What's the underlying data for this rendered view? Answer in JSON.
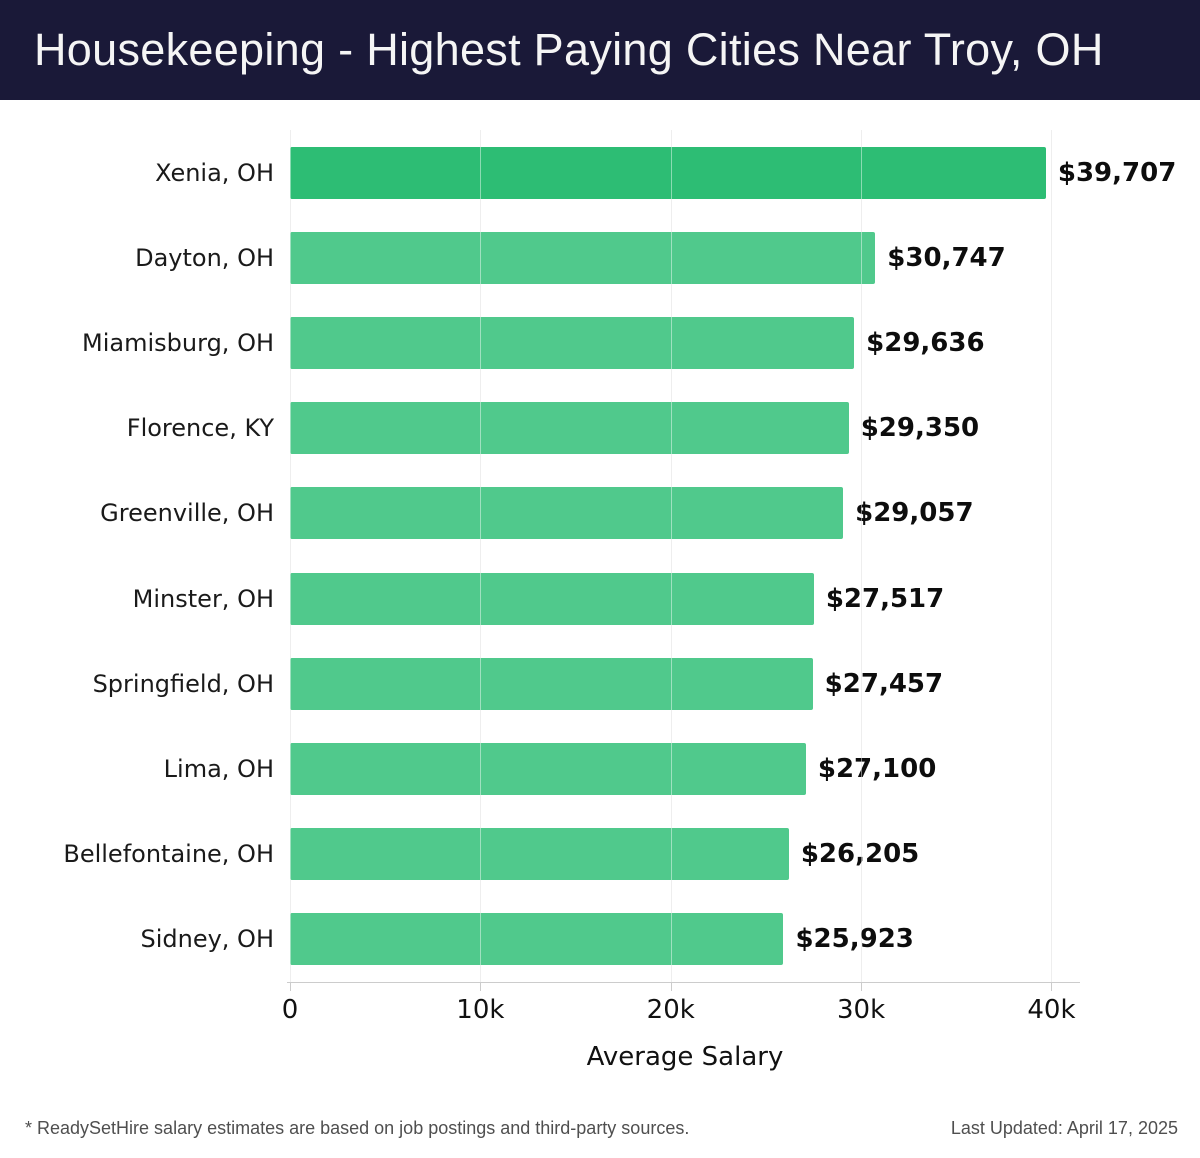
{
  "header": {
    "title": "Housekeeping - Highest Paying Cities Near Troy, OH"
  },
  "chart_data": {
    "type": "bar",
    "orientation": "horizontal",
    "title": "Housekeeping - Highest Paying Cities Near Troy, OH",
    "categories": [
      "Xenia, OH",
      "Dayton, OH",
      "Miamisburg, OH",
      "Florence, KY",
      "Greenville, OH",
      "Minster, OH",
      "Springfield, OH",
      "Lima, OH",
      "Bellefontaine, OH",
      "Sidney, OH"
    ],
    "values": [
      39707,
      30747,
      29636,
      29350,
      29057,
      27517,
      27457,
      27100,
      26205,
      25923
    ],
    "value_labels": [
      "$39,707",
      "$30,747",
      "$29,636",
      "$29,350",
      "$29,057",
      "$27,517",
      "$27,457",
      "$27,100",
      "$26,205",
      "$25,923"
    ],
    "xlabel": "Average Salary",
    "ylabel": "",
    "xlim": [
      0,
      41500
    ],
    "tick_values": [
      0,
      10000,
      20000,
      30000,
      40000
    ],
    "tick_labels": [
      "0",
      "10k",
      "20k",
      "30k",
      "40k"
    ],
    "grid": true,
    "legend": false,
    "highlight_index": 0,
    "colors": {
      "bar": "#50c98c",
      "bar_highlight": "#2dbd74",
      "grid": "#e0e0e0",
      "grid_overlay": "rgba(255,255,255,0.45)",
      "axis_line": "#cccccc",
      "header_bg": "#1a1938",
      "title_text": "#f5f5f5"
    }
  },
  "footer": {
    "note": "* ReadySetHire salary estimates are based on job postings and third-party sources.",
    "last_updated": "Last Updated: April 17, 2025"
  }
}
